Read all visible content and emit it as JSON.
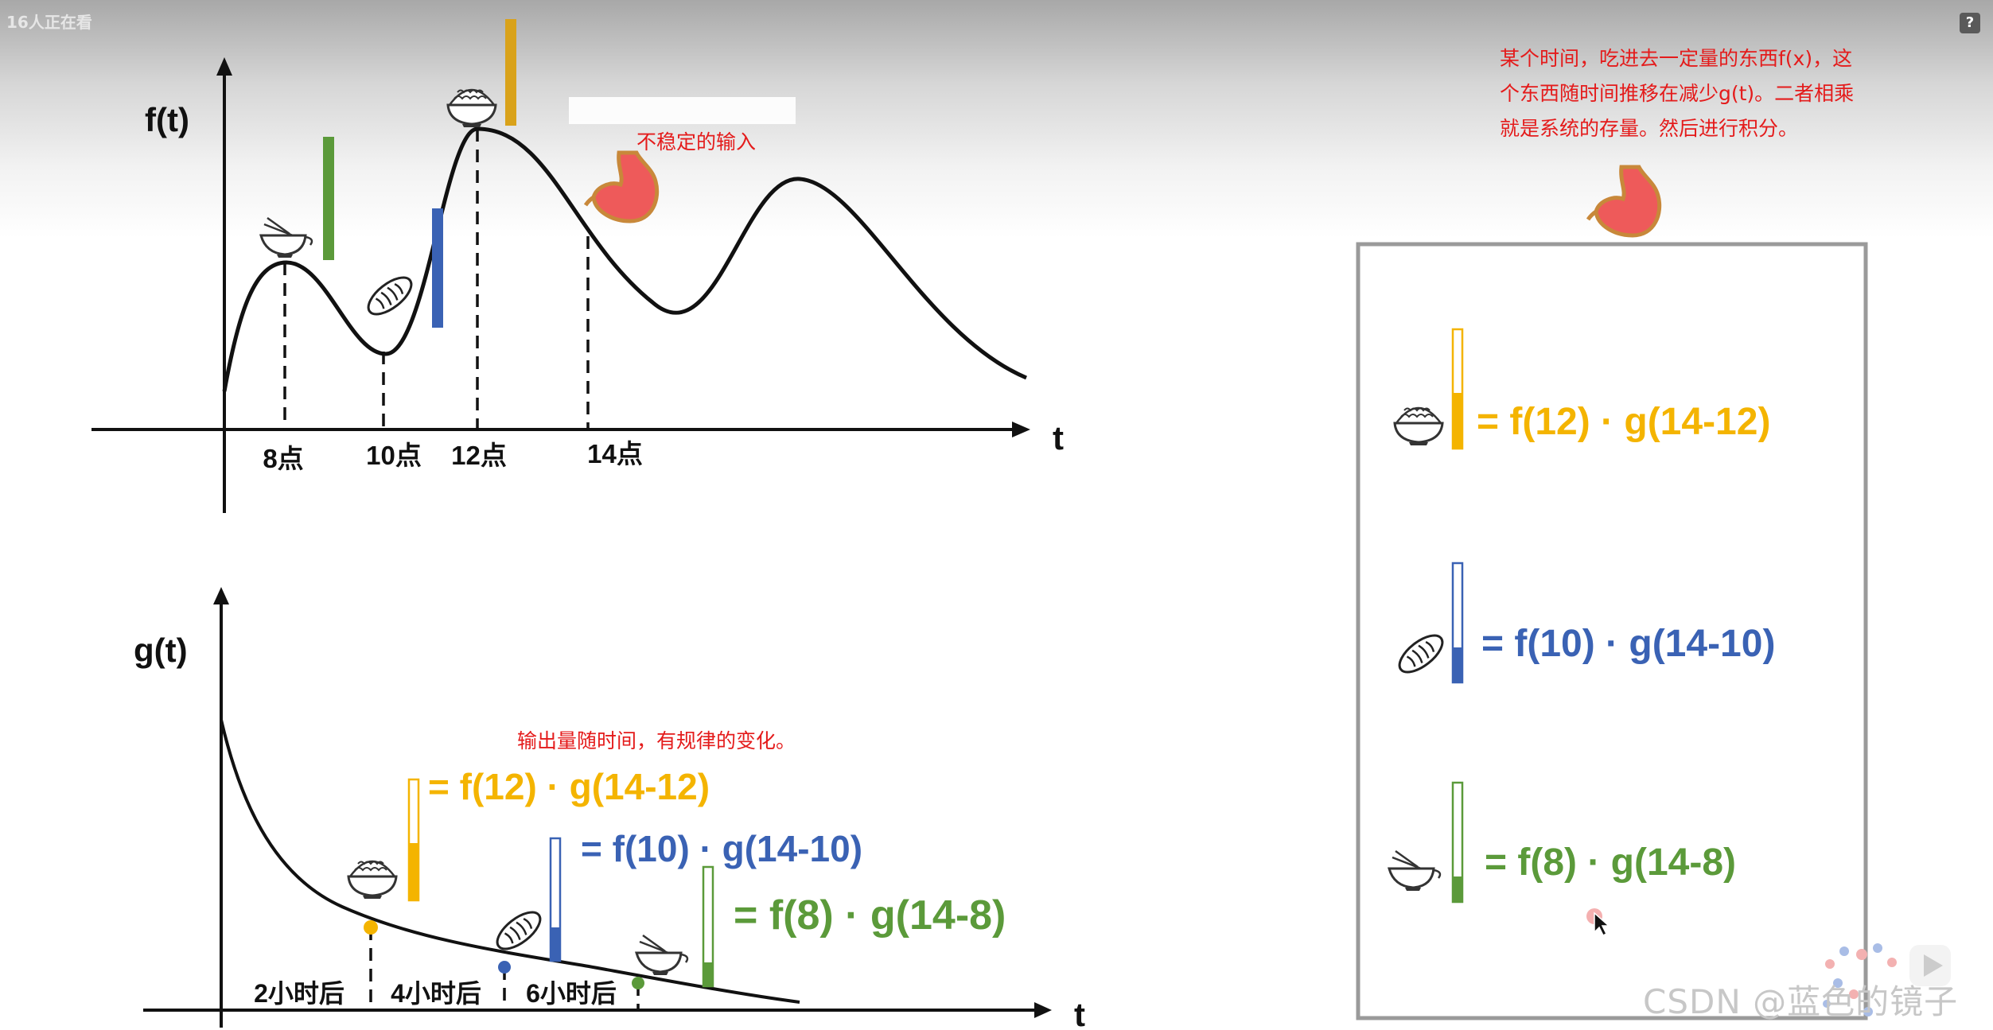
{
  "overlay": {
    "viewer_count": "16人正在看",
    "help_label": "?",
    "watermark": "CSDN @蓝色的镜子"
  },
  "top_chart": {
    "y_label": "f(t)",
    "x_label": "t",
    "ticks": [
      "8点",
      "10点",
      "12点",
      "14点"
    ],
    "note": "不稳定的输入"
  },
  "bottom_chart": {
    "y_label": "g(t)",
    "x_label": "t",
    "ticks": [
      "2小时后",
      "4小时后",
      "6小时后"
    ],
    "note": "输出量随时间，有规律的变化。",
    "eq_rice": "= f(12) · g(14-12)",
    "eq_bread": "= f(10) · g(14-10)",
    "eq_noodle": "= f(8) · g(14-8)"
  },
  "stomach_box": {
    "description_lines": [
      "某个时间，吃进去一定量的东西f(x)，这",
      "个东西随时间推移在减少g(t)。二者相乘",
      "就是系统的存量。然后进行积分。"
    ],
    "eq_rice": "= f(12) · g(14-12)",
    "eq_bread": "= f(10) · g(14-10)",
    "eq_noodle": "= f(8) · g(14-8)"
  },
  "colors": {
    "yellow": "#f4b400",
    "blue": "#3a62b4",
    "green": "#5b9a3a",
    "red_text": "#e41b1b",
    "stomach": "#ee5a5a",
    "box_border": "#9a9a9a"
  },
  "icons": [
    "rice-bowl-icon",
    "bread-icon",
    "noodle-bowl-icon",
    "stomach-icon",
    "cursor-icon",
    "help-icon"
  ]
}
